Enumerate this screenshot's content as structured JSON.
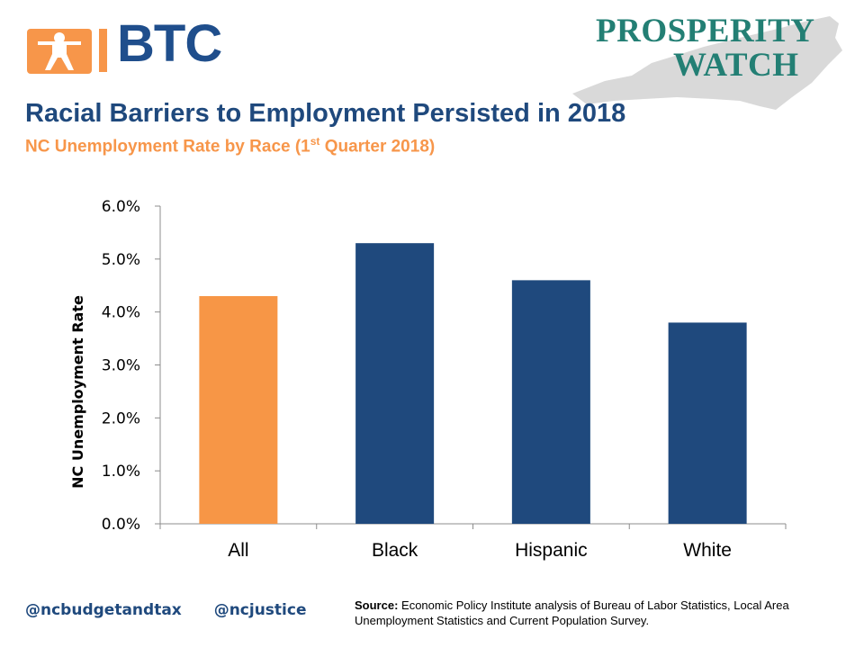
{
  "header": {
    "logo_left_text": "BTC",
    "logo_right_line1": "PROSPERITY",
    "logo_right_line2": "WATCH"
  },
  "title": "Racial Barriers to Employment Persisted in 2018",
  "subtitle": {
    "before": "NC Unemployment Rate by Race (1",
    "sup": "st",
    "after": " Quarter 2018)"
  },
  "chart_data": {
    "type": "bar",
    "categories": [
      "All",
      "Black",
      "Hispanic",
      "White"
    ],
    "values": [
      4.3,
      5.3,
      4.6,
      3.8
    ],
    "ylabel": "NC Unemployment Rate",
    "xlabel": "",
    "ylim": [
      0,
      6
    ],
    "ytick_step": 1,
    "yticks": [
      "0.0%",
      "1.0%",
      "2.0%",
      "3.0%",
      "4.0%",
      "5.0%",
      "6.0%"
    ],
    "bar_colors": [
      "#f79646",
      "#1f497d",
      "#1f497d",
      "#1f497d"
    ],
    "grid": false,
    "legend": "none"
  },
  "footer": {
    "handle_1": "@ncbudgetandtax",
    "handle_2": "@ncjustice",
    "source_label": "Source:",
    "source_text": " Economic Policy Institute  analysis of Bureau of Labor Statistics, Local Area Unemployment Statistics and Current Population Survey."
  },
  "colors": {
    "navy": "#1f497d",
    "orange": "#f79646",
    "teal": "#237f74"
  }
}
